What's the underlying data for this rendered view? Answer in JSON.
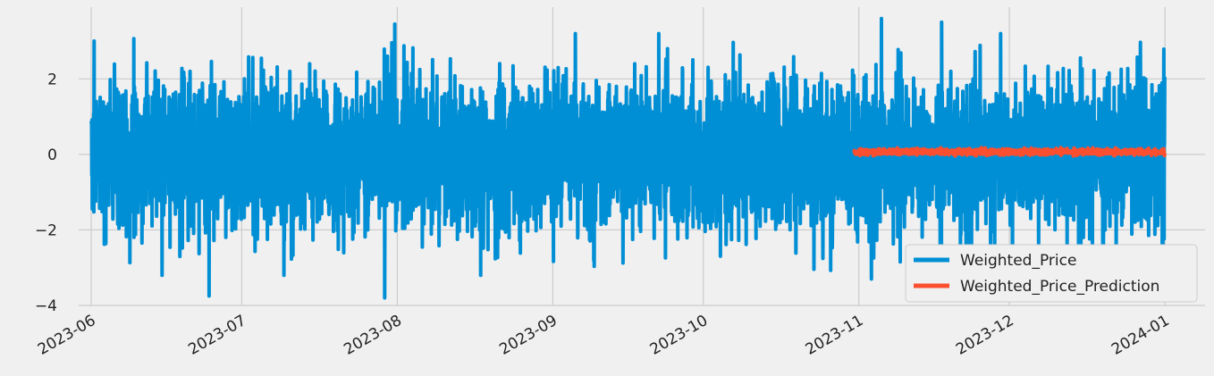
{
  "chart_data": {
    "type": "line",
    "title": "",
    "xlabel": "",
    "ylabel": "",
    "x_range": [
      "2023-06-01",
      "2024-01-09"
    ],
    "ylim": [
      -4.0,
      3.9
    ],
    "x_ticks": [
      "2023-06",
      "2023-07",
      "2023-08",
      "2023-09",
      "2023-10",
      "2023-11",
      "2023-12",
      "2024-01"
    ],
    "x_tick_dates": [
      "2023-06-01",
      "2023-07-01",
      "2023-08-01",
      "2023-09-01",
      "2023-10-01",
      "2023-11-01",
      "2023-12-01",
      "2024-01-01"
    ],
    "y_ticks": [
      2,
      0,
      -2,
      -4
    ],
    "y_tick_labels": [
      "2",
      "0",
      "−2",
      "−4"
    ],
    "grid": true,
    "legend_position": "lower-right",
    "series": [
      {
        "name": "Weighted_Price",
        "color": "#008fd5",
        "x_start": "2023-06-01",
        "x_end": "2023-12-31",
        "step_hours": 1,
        "mean": 0.0,
        "std": 1.0,
        "note_values": "hourly values oscillating roughly between -3.8 and 3.6",
        "extremes": [
          {
            "x": "2023-06-24",
            "y": -3.75
          },
          {
            "x": "2023-07-29",
            "y": -3.8
          },
          {
            "x": "2023-07-31",
            "y": 3.45
          },
          {
            "x": "2023-11-05",
            "y": 3.6
          },
          {
            "x": "2023-11-17",
            "y": 3.5
          },
          {
            "x": "2023-11-03",
            "y": -3.3
          }
        ]
      },
      {
        "name": "Weighted_Price_Prediction",
        "color": "#fc4f30",
        "x_start": "2023-10-31",
        "x_end": "2023-12-31",
        "step_hours": 1,
        "mean": 0.07,
        "range": [
          -0.05,
          0.18
        ]
      }
    ]
  }
}
